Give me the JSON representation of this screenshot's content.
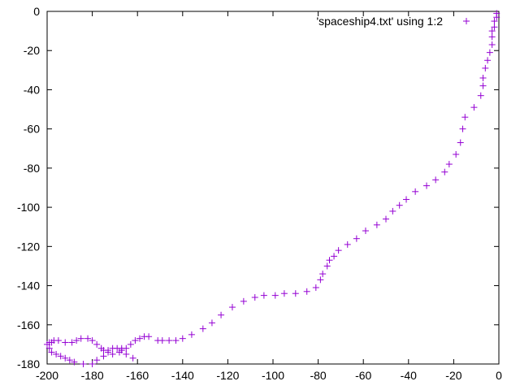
{
  "chart_data": {
    "type": "scatter",
    "title": "",
    "xlabel": "",
    "ylabel": "",
    "xlim": [
      -200,
      0
    ],
    "ylim": [
      -180,
      0
    ],
    "x_ticks": [
      -200,
      -180,
      -160,
      -140,
      -120,
      -100,
      -80,
      -60,
      -40,
      -20,
      0
    ],
    "y_ticks": [
      0,
      -20,
      -40,
      -60,
      -80,
      -100,
      -120,
      -140,
      -160,
      -180
    ],
    "grid": false,
    "legend_position": "top-right",
    "marker": "plus",
    "color": "#9400d3",
    "series": [
      {
        "name": "'spaceship4.txt' using 1:2",
        "points": [
          [
            -1,
            -1
          ],
          [
            -1,
            -3
          ],
          [
            -2,
            -5
          ],
          [
            -2,
            -8
          ],
          [
            -3,
            -10
          ],
          [
            -3,
            -13
          ],
          [
            -3,
            -17
          ],
          [
            -4,
            -21
          ],
          [
            -5,
            -25
          ],
          [
            -6,
            -29
          ],
          [
            -7,
            -34
          ],
          [
            -7,
            -38
          ],
          [
            -8,
            -43
          ],
          [
            -11,
            -49
          ],
          [
            -15,
            -54
          ],
          [
            -16,
            -60
          ],
          [
            -17,
            -67
          ],
          [
            -19,
            -73
          ],
          [
            -22,
            -78
          ],
          [
            -24,
            -82
          ],
          [
            -28,
            -86
          ],
          [
            -32,
            -89
          ],
          [
            -37,
            -92
          ],
          [
            -41,
            -96
          ],
          [
            -44,
            -99
          ],
          [
            -47,
            -102
          ],
          [
            -50,
            -106
          ],
          [
            -54,
            -109
          ],
          [
            -59,
            -112
          ],
          [
            -63,
            -116
          ],
          [
            -67,
            -119
          ],
          [
            -71,
            -122
          ],
          [
            -73,
            -125
          ],
          [
            -75,
            -127
          ],
          [
            -76,
            -130
          ],
          [
            -78,
            -134
          ],
          [
            -79,
            -137
          ],
          [
            -81,
            -141
          ],
          [
            -85,
            -143
          ],
          [
            -90,
            -144
          ],
          [
            -95,
            -144
          ],
          [
            -99,
            -145
          ],
          [
            -104,
            -145
          ],
          [
            -108,
            -146
          ],
          [
            -113,
            -148
          ],
          [
            -118,
            -151
          ],
          [
            -123,
            -155
          ],
          [
            -127,
            -159
          ],
          [
            -131,
            -162
          ],
          [
            -136,
            -165
          ],
          [
            -140,
            -167
          ],
          [
            -143,
            -168
          ],
          [
            -146,
            -168
          ],
          [
            -149,
            -168
          ],
          [
            -151,
            -168
          ],
          [
            -155,
            -166
          ],
          [
            -157,
            -166
          ],
          [
            -159,
            -167
          ],
          [
            -161,
            -168
          ],
          [
            -163,
            -170
          ],
          [
            -165,
            -172
          ],
          [
            -167,
            -172
          ],
          [
            -168,
            -174
          ],
          [
            -171,
            -175
          ],
          [
            -173,
            -174
          ],
          [
            -175,
            -173
          ],
          [
            -176,
            -172
          ],
          [
            -178,
            -170
          ],
          [
            -180,
            -168
          ],
          [
            -182,
            -167
          ],
          [
            -185,
            -167
          ],
          [
            -187,
            -168
          ],
          [
            -189,
            -169
          ],
          [
            -192,
            -169
          ],
          [
            -195,
            -168
          ],
          [
            -197,
            -168
          ],
          [
            -198,
            -169
          ],
          [
            -199,
            -169
          ],
          [
            -200,
            -170
          ],
          [
            -199,
            -172
          ],
          [
            -198,
            -174
          ],
          [
            -196,
            -175
          ],
          [
            -194,
            -176
          ],
          [
            -192,
            -177
          ],
          [
            -190,
            -178
          ],
          [
            -188,
            -179
          ],
          [
            -184,
            -180
          ],
          [
            -180,
            -180
          ],
          [
            -178,
            -178
          ],
          [
            -175,
            -176
          ],
          [
            -173,
            -173
          ],
          [
            -171,
            -172
          ],
          [
            -169,
            -172
          ],
          [
            -167,
            -173
          ],
          [
            -165,
            -175
          ],
          [
            -162,
            -177
          ]
        ]
      }
    ]
  }
}
